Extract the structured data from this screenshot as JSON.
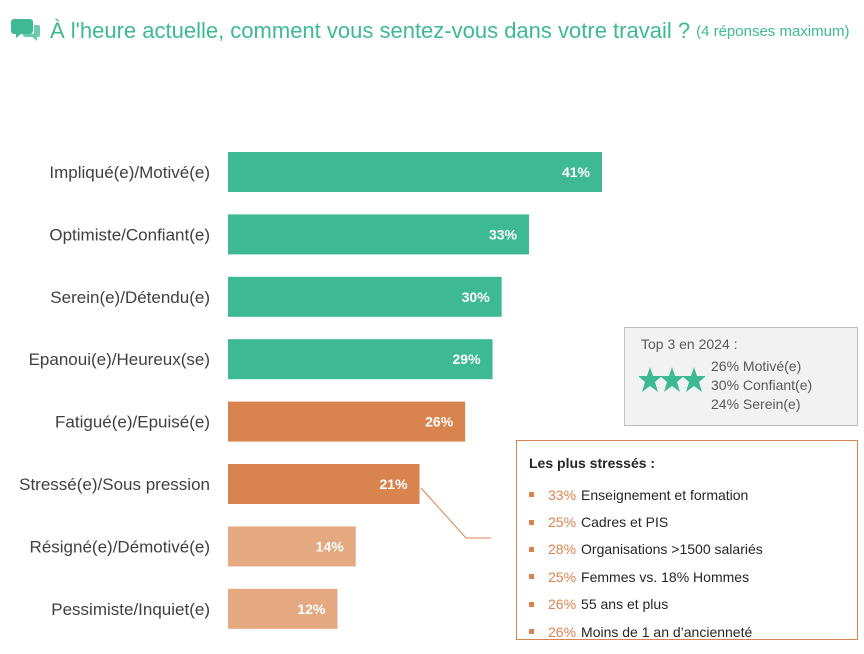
{
  "header": {
    "title": "À l'heure actuelle, comment vous sentez-vous dans votre travail ?",
    "subtitle": "(4 réponses maximum)",
    "icon": "speech-bubbles-icon"
  },
  "colors": {
    "accent_green": "#3db993",
    "orange": "#d9834e",
    "light_orange": "#e5a982"
  },
  "chart_data": {
    "type": "bar",
    "orientation": "horizontal",
    "categories": [
      "Impliqué(e)/Motivé(e)",
      "Optimiste/Confiant(e)",
      "Serein(e)/Détendu(e)",
      "Epanoui(e)/Heureux(se)",
      "Fatigué(e)/Epuisé(e)",
      "Stressé(e)/Sous pression",
      "Résigné(e)/Démotivé(e)",
      "Pessimiste/Inquiet(e)"
    ],
    "values": [
      41,
      33,
      30,
      29,
      26,
      21,
      14,
      12
    ],
    "labels": [
      "41%",
      "33%",
      "30%",
      "29%",
      "26%",
      "21%",
      "14%",
      "12%"
    ],
    "bar_colors": [
      "#3db993",
      "#3db993",
      "#3db993",
      "#3db993",
      "#d9834e",
      "#d9834e",
      "#e5a982",
      "#e5a982"
    ],
    "title": "",
    "xlabel": "",
    "ylabel": "",
    "xlim": [
      0,
      100
    ],
    "grid": false
  },
  "top3": {
    "title": "Top 3 en 2024 :",
    "icon": "three-stars-icon",
    "items": [
      "26% Motivé(e)",
      "30% Confiant(e)",
      "24% Serein(e)"
    ]
  },
  "stress": {
    "title": "Les plus stressés :",
    "items": [
      {
        "pct": "33%",
        "text": "Enseignement et formation"
      },
      {
        "pct": "25%",
        "text": "Cadres et PIS"
      },
      {
        "pct": "28%",
        "text": "Organisations >1500 salariés"
      },
      {
        "pct": "25%",
        "text": "Femmes vs. 18% Hommes"
      },
      {
        "pct": "26%",
        "text": "55 ans et plus"
      },
      {
        "pct": "26%",
        "text": "Moins de 1 an d’ancienneté"
      }
    ]
  }
}
